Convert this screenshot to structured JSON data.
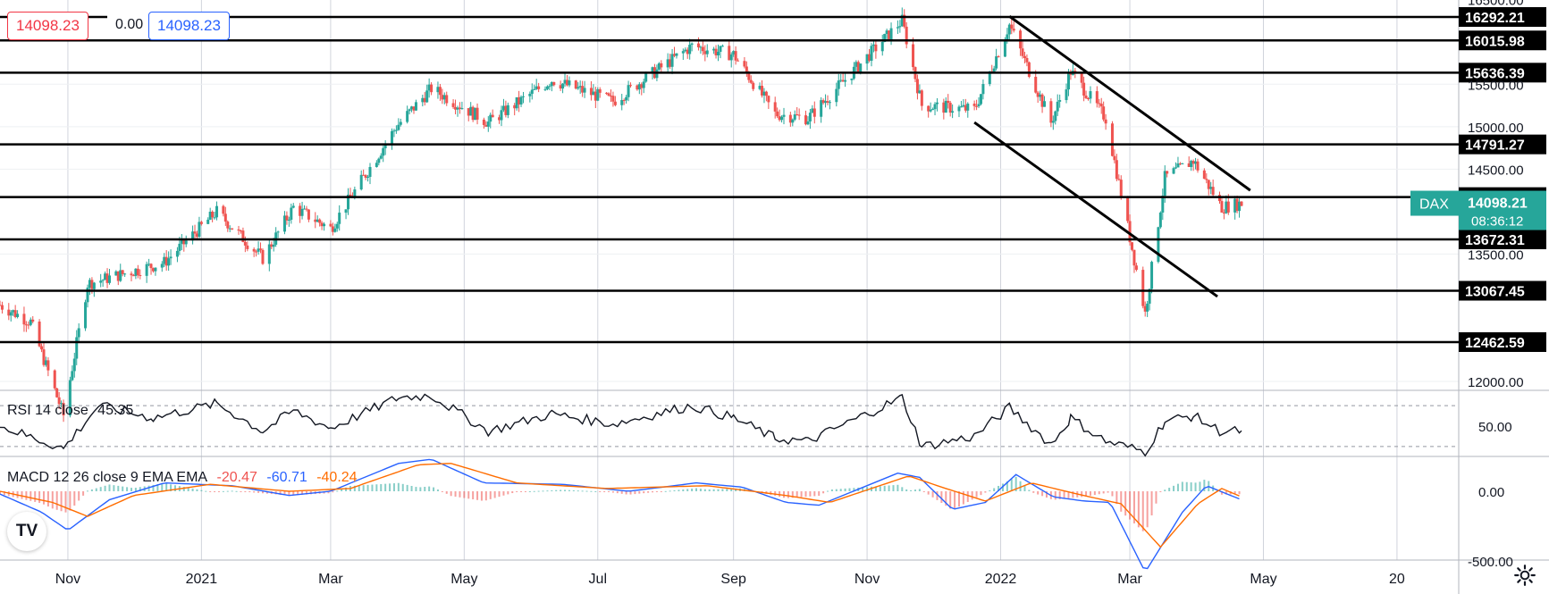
{
  "header": {
    "sell_price": "14098.23",
    "spread": "0.00",
    "buy_price": "14098.23"
  },
  "price_axis": {
    "tick_labels": [
      "16500.00",
      "15500.00",
      "15000.00",
      "14500.00",
      "13500.00",
      "12000.00"
    ],
    "current_symbol": "DAX",
    "current_price": "14098.21",
    "countdown": "08:36:12"
  },
  "levels": [
    "16292.21",
    "16015.98",
    "15636.39",
    "14791.27",
    "14170.79",
    "13672.31",
    "13067.45",
    "12462.59"
  ],
  "time_axis": {
    "labels": [
      "Nov",
      "2021",
      "Mar",
      "May",
      "Jul",
      "Sep",
      "Nov",
      "2022",
      "Mar",
      "May",
      "20"
    ]
  },
  "rsi": {
    "label": "RSI 14 close",
    "value": "45.35",
    "axis_label": "50.00"
  },
  "macd": {
    "label": "MACD 12 26 close 9 EMA EMA",
    "hist_value": "-20.47",
    "macd_value": "-60.71",
    "signal_value": "-40.24",
    "axis_labels": [
      "0.00",
      "-500.00"
    ]
  },
  "colors": {
    "up": "#26a69a",
    "down": "#ef5350",
    "level_line": "#000000",
    "macd_line": "#2962ff",
    "signal_line": "#ff6d00",
    "rsi_line": "#131722",
    "grid": "#d1d4dc"
  },
  "icons": {
    "logo": "tradingview-logo",
    "settings": "gear-icon"
  },
  "chart_data": {
    "type": "candlestick",
    "symbol": "DAX",
    "timeframe": "daily",
    "x_range": [
      "2020-10-01",
      "2022-04-25"
    ],
    "y_range": [
      11900,
      16550
    ],
    "y_ticks": [
      12000,
      13500,
      14500,
      15000,
      15500,
      16500
    ],
    "grid": true,
    "price_path": [
      [
        "2020-10-01",
        12900
      ],
      [
        "2020-10-15",
        12700
      ],
      [
        "2020-10-30",
        11600
      ],
      [
        "2020-11-10",
        13150
      ],
      [
        "2020-12-01",
        13300
      ],
      [
        "2020-12-15",
        13400
      ],
      [
        "2021-01-08",
        14000
      ],
      [
        "2021-01-29",
        13450
      ],
      [
        "2021-02-12",
        14050
      ],
      [
        "2021-03-01",
        13800
      ],
      [
        "2021-03-31",
        15000
      ],
      [
        "2021-04-16",
        15450
      ],
      [
        "2021-05-12",
        15050
      ],
      [
        "2021-06-10",
        15550
      ],
      [
        "2021-07-08",
        15300
      ],
      [
        "2021-08-13",
        15950
      ],
      [
        "2021-09-01",
        15850
      ],
      [
        "2021-09-20",
        15150
      ],
      [
        "2021-10-05",
        15100
      ],
      [
        "2021-11-17",
        16250
      ],
      [
        "2021-11-26",
        15250
      ],
      [
        "2021-12-20",
        15200
      ],
      [
        "2022-01-05",
        16200
      ],
      [
        "2022-01-24",
        15050
      ],
      [
        "2022-02-02",
        15650
      ],
      [
        "2022-02-18",
        15100
      ],
      [
        "2022-03-08",
        12800
      ],
      [
        "2022-03-17",
        14400
      ],
      [
        "2022-03-30",
        14600
      ],
      [
        "2022-04-12",
        14050
      ],
      [
        "2022-04-21",
        14098
      ]
    ],
    "levels": [
      16292.21,
      16015.98,
      15636.39,
      14791.27,
      14170.79,
      13672.31,
      13067.45,
      12462.59
    ],
    "channel_lines": [
      {
        "from": [
          "2022-01-05",
          16300
        ],
        "to": [
          "2022-04-25",
          14250
        ]
      },
      {
        "from": [
          "2021-12-20",
          15050
        ],
        "to": [
          "2022-04-10",
          13000
        ]
      }
    ],
    "rsi": {
      "label": "RSI 14 close",
      "last": 45.35,
      "ylim": [
        20,
        90
      ],
      "bands": [
        30,
        70
      ],
      "path": [
        [
          "2020-10-01",
          50
        ],
        [
          "2020-10-30",
          28
        ],
        [
          "2020-11-15",
          70
        ],
        [
          "2020-12-10",
          58
        ],
        [
          "2021-01-08",
          72
        ],
        [
          "2021-01-29",
          45
        ],
        [
          "2021-02-12",
          65
        ],
        [
          "2021-03-01",
          48
        ],
        [
          "2021-04-01",
          78
        ],
        [
          "2021-04-16",
          80
        ],
        [
          "2021-05-12",
          45
        ],
        [
          "2021-06-10",
          62
        ],
        [
          "2021-07-08",
          52
        ],
        [
          "2021-08-13",
          70
        ],
        [
          "2021-09-01",
          58
        ],
        [
          "2021-09-20",
          38
        ],
        [
          "2021-10-05",
          35
        ],
        [
          "2021-11-17",
          78
        ],
        [
          "2021-11-26",
          30
        ],
        [
          "2021-12-20",
          40
        ],
        [
          "2022-01-05",
          68
        ],
        [
          "2022-01-24",
          32
        ],
        [
          "2022-02-02",
          58
        ],
        [
          "2022-02-18",
          35
        ],
        [
          "2022-03-08",
          25
        ],
        [
          "2022-03-17",
          55
        ],
        [
          "2022-03-30",
          60
        ],
        [
          "2022-04-12",
          44
        ],
        [
          "2022-04-21",
          45.35
        ]
      ]
    },
    "macd": {
      "label": "MACD 12 26 close 9 EMA EMA",
      "histogram_last": -20.47,
      "macd_last": -60.71,
      "signal_last": -40.24,
      "ylim": [
        -650,
        300
      ],
      "macd_path": [
        [
          "2020-10-01",
          -20
        ],
        [
          "2020-10-20",
          -150
        ],
        [
          "2020-11-01",
          -280
        ],
        [
          "2020-11-20",
          -60
        ],
        [
          "2020-12-15",
          60
        ],
        [
          "2021-01-15",
          40
        ],
        [
          "2021-02-10",
          -30
        ],
        [
          "2021-03-01",
          0
        ],
        [
          "2021-04-01",
          200
        ],
        [
          "2021-04-16",
          230
        ],
        [
          "2021-05-10",
          60
        ],
        [
          "2021-06-15",
          50
        ],
        [
          "2021-07-15",
          0
        ],
        [
          "2021-08-15",
          60
        ],
        [
          "2021-09-05",
          30
        ],
        [
          "2021-09-25",
          -80
        ],
        [
          "2021-10-10",
          -100
        ],
        [
          "2021-11-15",
          130
        ],
        [
          "2021-11-25",
          100
        ],
        [
          "2021-12-10",
          -130
        ],
        [
          "2021-12-25",
          -80
        ],
        [
          "2022-01-08",
          120
        ],
        [
          "2022-01-25",
          -40
        ],
        [
          "2022-02-08",
          -70
        ],
        [
          "2022-02-20",
          -80
        ],
        [
          "2022-03-08",
          -580
        ],
        [
          "2022-03-25",
          -150
        ],
        [
          "2022-04-05",
          40
        ],
        [
          "2022-04-21",
          -60.71
        ]
      ],
      "signal_path": [
        [
          "2020-10-01",
          0
        ],
        [
          "2020-10-25",
          -80
        ],
        [
          "2020-11-10",
          -180
        ],
        [
          "2020-12-01",
          -30
        ],
        [
          "2021-01-05",
          50
        ],
        [
          "2021-02-10",
          0
        ],
        [
          "2021-03-10",
          20
        ],
        [
          "2021-04-10",
          190
        ],
        [
          "2021-04-25",
          200
        ],
        [
          "2021-05-25",
          60
        ],
        [
          "2021-07-05",
          20
        ],
        [
          "2021-08-20",
          40
        ],
        [
          "2021-09-25",
          -30
        ],
        [
          "2021-10-15",
          -80
        ],
        [
          "2021-11-20",
          110
        ],
        [
          "2021-12-05",
          30
        ],
        [
          "2021-12-25",
          -70
        ],
        [
          "2022-01-15",
          60
        ],
        [
          "2022-02-05",
          -20
        ],
        [
          "2022-02-25",
          -90
        ],
        [
          "2022-03-15",
          -400
        ],
        [
          "2022-04-01",
          -90
        ],
        [
          "2022-04-12",
          20
        ],
        [
          "2022-04-21",
          -40.24
        ]
      ]
    }
  }
}
